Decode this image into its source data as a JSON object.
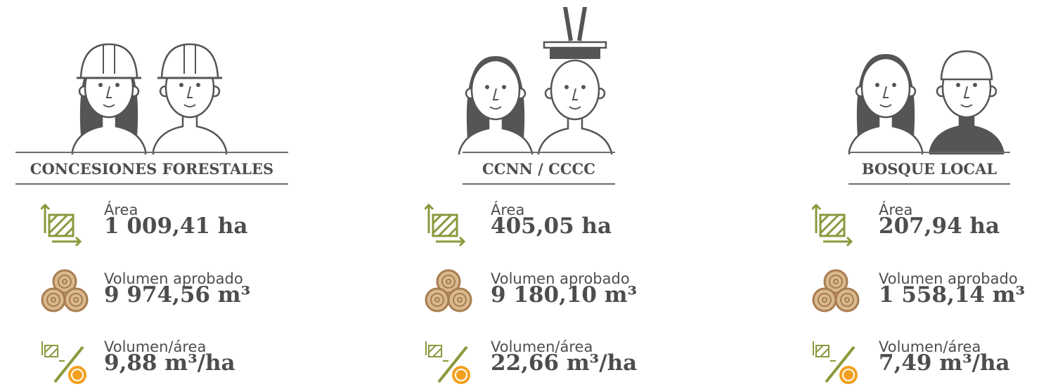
{
  "columns": [
    {
      "title": "CONCESIONES FORESTALES",
      "stats": [
        {
          "label": "Área",
          "value": "1 009,41 ha"
        },
        {
          "label": "Volumen aprobado",
          "value": "9 974,56 m³"
        },
        {
          "label": "Volumen/área",
          "value": "9,88 m³/ha"
        }
      ]
    },
    {
      "title": "CCNN / CCCC",
      "stats": [
        {
          "label": "Área",
          "value": "405,05 ha"
        },
        {
          "label": "Volumen aprobado",
          "value": "9 180,10 m³"
        },
        {
          "label": "Volumen/área",
          "value": "22,66 m³/ha"
        }
      ]
    },
    {
      "title": "BOSQUE LOCAL",
      "stats": [
        {
          "label": "Área",
          "value": "207,94 ha"
        },
        {
          "label": "Volumen aprobado",
          "value": "1 558,14 m³"
        },
        {
          "label": "Volumen/área",
          "value": "7,49 m³/ha"
        }
      ]
    }
  ]
}
